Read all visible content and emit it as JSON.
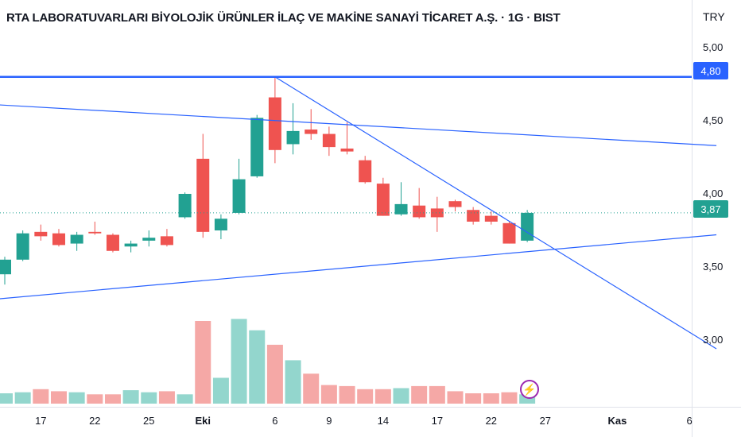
{
  "header": {
    "title": "RTA LABORATUVARLARI BİYOLOJİK ÜRÜNLER İLAÇ VE MAKİNE SANAYİ TİCARET A.Ş. · 1G · BIST",
    "currency": "TRY"
  },
  "price_tags": {
    "resistance": "4,80",
    "last": "3,87"
  },
  "colors": {
    "up": "#22a192",
    "down": "#ef5350",
    "up_volume": "#93d6cd",
    "down_volume": "#f5a8a6",
    "trendline": "#2962ff",
    "flash": "#9c27b0"
  },
  "icons": {
    "flash_badge": "lightning-bolt-icon"
  },
  "chart_data": {
    "type": "candlestick",
    "title": "RTA LABORATUVARLARI BİYOLOJİK ÜRÜNLER İLAÇ VE MAKİNE SANAYİ TİCARET A.Ş. · 1G · BIST",
    "currency": "TRY",
    "y_ticks": [
      "5,00",
      "4,50",
      "4,00",
      "3,50",
      "3,00"
    ],
    "y_tick_values": [
      5.0,
      4.5,
      4.0,
      3.5,
      3.0
    ],
    "ylim": [
      2.63,
      5.13
    ],
    "x_ticks": [
      {
        "label": "17",
        "session": 2
      },
      {
        "label": "22",
        "session": 5
      },
      {
        "label": "25",
        "session": 8
      },
      {
        "label": "Eki",
        "session": 11
      },
      {
        "label": "6",
        "session": 15
      },
      {
        "label": "9",
        "session": 18
      },
      {
        "label": "14",
        "session": 21
      },
      {
        "label": "17",
        "session": 24
      },
      {
        "label": "22",
        "session": 27
      },
      {
        "label": "27",
        "session": 30
      },
      {
        "label": "Kas",
        "session": 34
      },
      {
        "label": "6",
        "session": 38
      }
    ],
    "candles": [
      {
        "session": 0,
        "o": 3.45,
        "h": 3.57,
        "l": 3.38,
        "c": 3.55,
        "v": 0.1
      },
      {
        "session": 1,
        "o": 3.55,
        "h": 3.75,
        "l": 3.54,
        "c": 3.73,
        "v": 0.11
      },
      {
        "session": 2,
        "o": 3.74,
        "h": 3.79,
        "l": 3.68,
        "c": 3.71,
        "v": 0.14
      },
      {
        "session": 3,
        "o": 3.73,
        "h": 3.76,
        "l": 3.64,
        "c": 3.65,
        "v": 0.12
      },
      {
        "session": 4,
        "o": 3.66,
        "h": 3.74,
        "l": 3.61,
        "c": 3.72,
        "v": 0.11
      },
      {
        "session": 5,
        "o": 3.74,
        "h": 3.81,
        "l": 3.72,
        "c": 3.73,
        "v": 0.09
      },
      {
        "session": 6,
        "o": 3.72,
        "h": 3.73,
        "l": 3.6,
        "c": 3.61,
        "v": 0.09
      },
      {
        "session": 7,
        "o": 3.64,
        "h": 3.68,
        "l": 3.6,
        "c": 3.66,
        "v": 0.13
      },
      {
        "session": 8,
        "o": 3.68,
        "h": 3.75,
        "l": 3.64,
        "c": 3.7,
        "v": 0.11
      },
      {
        "session": 9,
        "o": 3.71,
        "h": 3.76,
        "l": 3.64,
        "c": 3.65,
        "v": 0.12
      },
      {
        "session": 10,
        "o": 3.84,
        "h": 4.01,
        "l": 3.83,
        "c": 4.0,
        "v": 0.09
      },
      {
        "session": 11,
        "o": 4.24,
        "h": 4.41,
        "l": 3.7,
        "c": 3.74,
        "v": 0.8
      },
      {
        "session": 12,
        "o": 3.75,
        "h": 3.86,
        "l": 3.69,
        "c": 3.83,
        "v": 0.25
      },
      {
        "session": 13,
        "o": 3.87,
        "h": 4.24,
        "l": 3.86,
        "c": 4.1,
        "v": 0.82
      },
      {
        "session": 14,
        "o": 4.12,
        "h": 4.54,
        "l": 4.11,
        "c": 4.52,
        "v": 0.71
      },
      {
        "session": 15,
        "o": 4.66,
        "h": 4.8,
        "l": 4.21,
        "c": 4.3,
        "v": 0.57
      },
      {
        "session": 16,
        "o": 4.34,
        "h": 4.62,
        "l": 4.27,
        "c": 4.43,
        "v": 0.42
      },
      {
        "session": 17,
        "o": 4.44,
        "h": 4.58,
        "l": 4.37,
        "c": 4.41,
        "v": 0.29
      },
      {
        "session": 18,
        "o": 4.41,
        "h": 4.46,
        "l": 4.26,
        "c": 4.32,
        "v": 0.18
      },
      {
        "session": 19,
        "o": 4.31,
        "h": 4.49,
        "l": 4.27,
        "c": 4.29,
        "v": 0.17
      },
      {
        "session": 20,
        "o": 4.23,
        "h": 4.26,
        "l": 4.07,
        "c": 4.08,
        "v": 0.14
      },
      {
        "session": 21,
        "o": 4.07,
        "h": 4.11,
        "l": 3.85,
        "c": 3.85,
        "v": 0.14
      },
      {
        "session": 22,
        "o": 3.86,
        "h": 4.08,
        "l": 3.85,
        "c": 3.93,
        "v": 0.15
      },
      {
        "session": 23,
        "o": 3.92,
        "h": 4.04,
        "l": 3.83,
        "c": 3.84,
        "v": 0.17
      },
      {
        "session": 24,
        "o": 3.9,
        "h": 3.98,
        "l": 3.74,
        "c": 3.84,
        "v": 0.17
      },
      {
        "session": 25,
        "o": 3.95,
        "h": 3.96,
        "l": 3.88,
        "c": 3.91,
        "v": 0.12
      },
      {
        "session": 26,
        "o": 3.89,
        "h": 3.91,
        "l": 3.79,
        "c": 3.81,
        "v": 0.1
      },
      {
        "session": 27,
        "o": 3.85,
        "h": 3.88,
        "l": 3.79,
        "c": 3.81,
        "v": 0.1
      },
      {
        "session": 28,
        "o": 3.8,
        "h": 3.81,
        "l": 3.66,
        "c": 3.66,
        "v": 0.11
      },
      {
        "session": 29,
        "o": 3.68,
        "h": 3.89,
        "l": 3.67,
        "c": 3.87,
        "v": 0.09
      }
    ],
    "lines": [
      {
        "name": "resistance",
        "type": "horizontal",
        "y": 4.8
      },
      {
        "name": "upper-trendline",
        "from": {
          "session": -0.5,
          "y": 4.61
        },
        "to": {
          "session": 39.5,
          "y": 4.33
        }
      },
      {
        "name": "lower-trendline",
        "from": {
          "session": -0.5,
          "y": 3.28
        },
        "to": {
          "session": 39.5,
          "y": 3.72
        }
      },
      {
        "name": "falling-trendline",
        "from": {
          "session": 15,
          "y": 4.8
        },
        "to": {
          "session": 39.5,
          "y": 2.94
        }
      }
    ],
    "last_price": 3.87,
    "grid": false
  }
}
